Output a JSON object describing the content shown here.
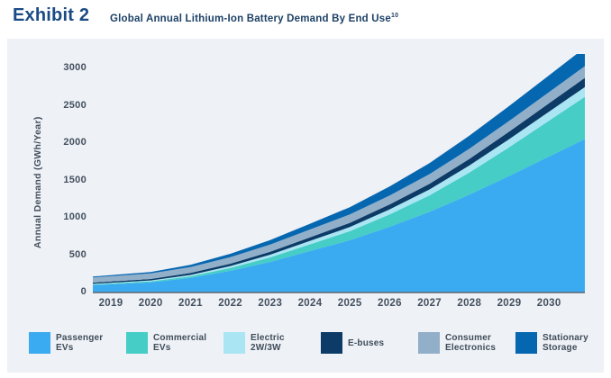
{
  "header": {
    "exhibit_label": "Exhibit 2",
    "title": "Global Annual Lithium-Ion Battery Demand By End Use",
    "footnote_superscript": "10"
  },
  "chart_data": {
    "type": "area",
    "stacked": true,
    "title": "Global Annual Lithium-Ion Battery Demand By End Use",
    "xlabel": "",
    "ylabel": "Annual Demand (GWh/Year)",
    "ylim": [
      0,
      3000
    ],
    "yticks": [
      0,
      500,
      1000,
      1500,
      2000,
      2500,
      3000
    ],
    "grid": false,
    "legend_position": "bottom",
    "panel_background": "#eef1f6",
    "axis_line_color": "#5c6670",
    "text_color": "#44505e",
    "categories": [
      "2019",
      "2020",
      "2021",
      "2022",
      "2023",
      "2024",
      "2025",
      "2026",
      "2027",
      "2028",
      "2029",
      "2030"
    ],
    "series": [
      {
        "name": "Passenger EVs",
        "color": "#3aabf0",
        "label_lines": [
          "Passenger",
          "EVs"
        ],
        "values": [
          110,
          135,
          195,
          290,
          410,
          555,
          700,
          880,
          1080,
          1310,
          1560,
          1820
        ]
      },
      {
        "name": "Commercial EVs",
        "color": "#45cdc6",
        "label_lines": [
          "Commercial",
          "EVs"
        ],
        "values": [
          10,
          14,
          22,
          38,
          60,
          90,
          120,
          165,
          220,
          295,
          385,
          480
        ]
      },
      {
        "name": "Electric 2W/3W",
        "color": "#aae5f4",
        "label_lines": [
          "Electric",
          "2W/3W"
        ],
        "values": [
          10,
          12,
          18,
          26,
          36,
          46,
          56,
          68,
          80,
          95,
          108,
          120
        ]
      },
      {
        "name": "E-buses",
        "color": "#0b3b66",
        "label_lines": [
          "E-buses"
        ],
        "values": [
          18,
          20,
          26,
          32,
          40,
          48,
          56,
          66,
          76,
          88,
          100,
          112
        ]
      },
      {
        "name": "Consumer Electronics",
        "color": "#92afc9",
        "label_lines": [
          "Consumer",
          "Electronics"
        ],
        "values": [
          70,
          74,
          80,
          88,
          96,
          104,
          112,
          120,
          128,
          136,
          143,
          150
        ]
      },
      {
        "name": "Stationary Storage",
        "color": "#0667b1",
        "label_lines": [
          "Stationary",
          "Storage"
        ],
        "values": [
          15,
          20,
          30,
          44,
          60,
          78,
          98,
          122,
          148,
          175,
          200,
          225
        ]
      }
    ],
    "totals_by_year": [
      233,
      275,
      371,
      518,
      702,
      921,
      1142,
      1421,
      1732,
      2099,
      2496,
      2907
    ]
  }
}
